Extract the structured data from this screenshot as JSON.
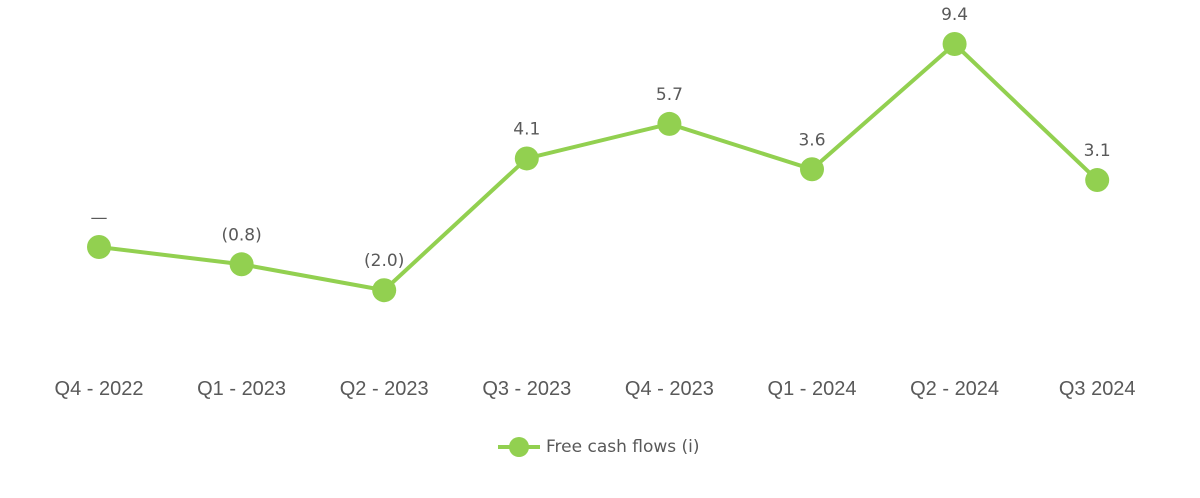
{
  "chart_data": {
    "type": "line",
    "title": "",
    "xlabel": "",
    "ylabel": "",
    "categories": [
      "Q4 - 2022",
      "Q1 - 2023",
      "Q2 - 2023",
      "Q3 - 2023",
      "Q4 - 2023",
      "Q1 - 2024",
      "Q2 - 2024",
      "Q3 2024"
    ],
    "series": [
      {
        "name": "Free cash flows (i)",
        "values": [
          0,
          -0.8,
          -2.0,
          4.1,
          5.7,
          3.6,
          9.4,
          3.1
        ],
        "data_labels": [
          "—",
          "(0.8)",
          "(2.0)",
          "4.1",
          "5.7",
          "3.6",
          "9.4",
          "3.1"
        ],
        "color": "#92d050"
      }
    ],
    "grid": false,
    "y_axis_visible": false,
    "legend_position": "bottom"
  },
  "legend": {
    "label": "Free cash flows (i)"
  }
}
